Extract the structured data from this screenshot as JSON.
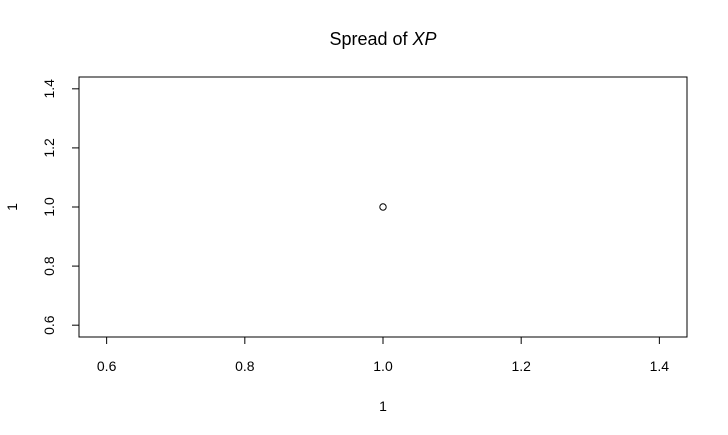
{
  "chart_data": {
    "type": "scatter",
    "title": {
      "prefix": "Spread of ",
      "italic": "XP"
    },
    "xlabel": "1",
    "ylabel": "1",
    "xlim": [
      0.56,
      1.44
    ],
    "ylim": [
      0.56,
      1.44
    ],
    "xticks": [
      0.6,
      0.8,
      1.0,
      1.2,
      1.4
    ],
    "xtick_labels": [
      "0.6",
      "0.8",
      "1.0",
      "1.2",
      "1.4"
    ],
    "yticks": [
      0.6,
      0.8,
      1.0,
      1.2,
      1.4
    ],
    "ytick_labels": [
      "0.6",
      "0.8",
      "1.0",
      "1.2",
      "1.4"
    ],
    "points": [
      {
        "x": 1.0,
        "y": 1.0
      }
    ],
    "marker": "open-circle",
    "grid": false,
    "legend": "none"
  }
}
